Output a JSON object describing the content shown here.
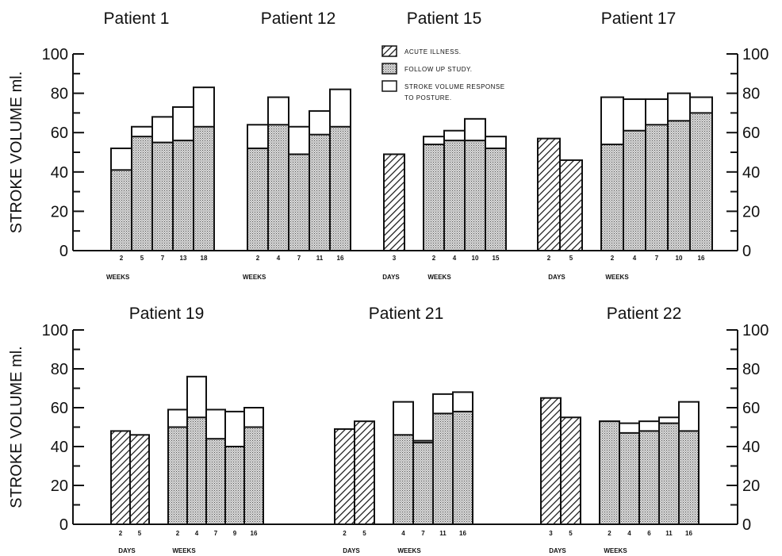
{
  "chart_data": {
    "type": "bar",
    "ylabel": "STROKE VOLUME ml.",
    "ylim": [
      0,
      100
    ],
    "yticks": [
      "0",
      "20",
      "40",
      "60",
      "80",
      "100"
    ],
    "grid": false,
    "legend": {
      "placement": "top-center",
      "entries": [
        {
          "key": "acute",
          "label": "ACUTE ILLNESS."
        },
        {
          "key": "follow",
          "label": "FOLLOW UP STUDY."
        },
        {
          "key": "response",
          "label": "STROKE VOLUME RESPONSE",
          "label2": "TO POSTURE."
        }
      ]
    },
    "panels": [
      {
        "title": "Patient 1",
        "row": 0,
        "acute_days": [],
        "acute_values": [],
        "weeks": [
          "2",
          "5",
          "7",
          "13",
          "18"
        ],
        "follow_up": [
          41,
          58,
          55,
          56,
          63
        ],
        "posture_total": [
          52,
          63,
          68,
          73,
          83
        ],
        "day_unit": "",
        "week_unit": "WEEKS"
      },
      {
        "title": "Patient 12",
        "row": 0,
        "acute_days": [],
        "acute_values": [],
        "weeks": [
          "2",
          "4",
          "7",
          "11",
          "16"
        ],
        "follow_up": [
          52,
          64,
          49,
          59,
          63
        ],
        "posture_total": [
          64,
          78,
          63,
          71,
          82
        ],
        "day_unit": "",
        "week_unit": "WEEKS"
      },
      {
        "title": "Patient 15",
        "row": 0,
        "acute_days": [
          "3"
        ],
        "acute_values": [
          49
        ],
        "weeks": [
          "2",
          "4",
          "10",
          "15"
        ],
        "follow_up": [
          54,
          56,
          56,
          52
        ],
        "posture_total": [
          58,
          61,
          67,
          58
        ],
        "day_unit": "DAYS",
        "week_unit": "WEEKS"
      },
      {
        "title": "Patient 17",
        "row": 0,
        "acute_days": [
          "2",
          "5"
        ],
        "acute_values": [
          57,
          46
        ],
        "weeks": [
          "2",
          "4",
          "7",
          "10",
          "16"
        ],
        "follow_up": [
          54,
          61,
          64,
          66,
          70
        ],
        "posture_total": [
          78,
          77,
          77,
          80,
          78
        ],
        "day_unit": "DAYS",
        "week_unit": "WEEKS"
      },
      {
        "title": "Patient 19",
        "row": 1,
        "acute_days": [
          "2",
          "5"
        ],
        "acute_values": [
          48,
          46
        ],
        "weeks": [
          "2",
          "4",
          "7",
          "9",
          "16"
        ],
        "follow_up": [
          50,
          55,
          44,
          40,
          50
        ],
        "posture_total": [
          59,
          76,
          59,
          58,
          60
        ],
        "day_unit": "DAYS",
        "week_unit": "WEEKS"
      },
      {
        "title": "Patient 21",
        "row": 1,
        "acute_days": [
          "2",
          "5"
        ],
        "acute_values": [
          49,
          53
        ],
        "weeks": [
          "4",
          "7",
          "11",
          "16"
        ],
        "follow_up": [
          46,
          42,
          57,
          58
        ],
        "posture_total": [
          63,
          43,
          67,
          68
        ],
        "day_unit": "DAYS",
        "week_unit": "WEEKS"
      },
      {
        "title": "Patient 22",
        "row": 1,
        "acute_days": [
          "3",
          "5"
        ],
        "acute_values": [
          65,
          55
        ],
        "weeks": [
          "2",
          "4",
          "6",
          "11",
          "16"
        ],
        "follow_up": [
          53,
          47,
          48,
          52,
          48
        ],
        "posture_total": [
          53,
          52,
          53,
          55,
          63
        ],
        "day_unit": "DAYS",
        "week_unit": "WEEKS"
      }
    ]
  }
}
